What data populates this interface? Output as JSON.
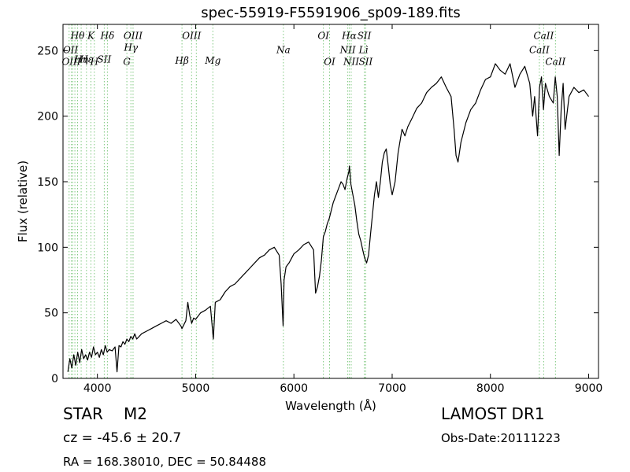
{
  "chart_data": {
    "type": "line",
    "title": "spec-55919-F5591906_sp09-189.fits",
    "xlabel": "Wavelength (Å)",
    "ylabel": "Flux (relative)",
    "xlim": [
      3650,
      9100
    ],
    "ylim": [
      0,
      270
    ],
    "xticks": [
      4000,
      5000,
      6000,
      7000,
      8000,
      9000
    ],
    "yticks": [
      0,
      50,
      100,
      150,
      200,
      250
    ],
    "grid": false,
    "series": [
      {
        "color": "#000000",
        "x": [
          3700,
          3720,
          3740,
          3760,
          3780,
          3800,
          3820,
          3840,
          3860,
          3880,
          3900,
          3920,
          3940,
          3960,
          3980,
          4000,
          4020,
          4040,
          4060,
          4080,
          4100,
          4120,
          4150,
          4180,
          4200,
          4220,
          4240,
          4260,
          4280,
          4300,
          4320,
          4340,
          4360,
          4380,
          4400,
          4450,
          4500,
          4550,
          4600,
          4650,
          4700,
          4750,
          4800,
          4850,
          4860,
          4900,
          4920,
          4940,
          4960,
          4980,
          5000,
          5050,
          5100,
          5150,
          5180,
          5200,
          5250,
          5300,
          5350,
          5400,
          5450,
          5500,
          5550,
          5600,
          5650,
          5700,
          5750,
          5800,
          5850,
          5870,
          5890,
          5900,
          5920,
          5950,
          6000,
          6050,
          6100,
          6150,
          6200,
          6220,
          6240,
          6260,
          6280,
          6300,
          6320,
          6340,
          6360,
          6380,
          6400,
          6420,
          6440,
          6460,
          6480,
          6500,
          6520,
          6540,
          6560,
          6565,
          6580,
          6600,
          6620,
          6640,
          6660,
          6680,
          6700,
          6720,
          6740,
          6760,
          6780,
          6800,
          6820,
          6840,
          6860,
          6880,
          6900,
          6920,
          6940,
          6960,
          6980,
          7000,
          7030,
          7060,
          7100,
          7130,
          7160,
          7200,
          7250,
          7300,
          7350,
          7400,
          7450,
          7500,
          7550,
          7600,
          7630,
          7650,
          7670,
          7700,
          7750,
          7800,
          7850,
          7900,
          7950,
          8000,
          8050,
          8100,
          8150,
          8200,
          8250,
          8300,
          8350,
          8400,
          8430,
          8450,
          8480,
          8500,
          8520,
          8540,
          8560,
          8600,
          8640,
          8660,
          8680,
          8700,
          8720,
          8740,
          8760,
          8800,
          8850,
          8900,
          8950,
          9000
        ],
        "y": [
          5,
          15,
          8,
          18,
          10,
          20,
          12,
          22,
          15,
          18,
          14,
          20,
          16,
          24,
          18,
          20,
          16,
          22,
          18,
          25,
          20,
          22,
          21,
          24,
          5,
          25,
          24,
          28,
          26,
          30,
          28,
          32,
          30,
          34,
          30,
          34,
          36,
          38,
          40,
          42,
          44,
          42,
          45,
          40,
          38,
          44,
          58,
          48,
          42,
          46,
          45,
          50,
          52,
          55,
          30,
          58,
          60,
          66,
          70,
          72,
          76,
          80,
          84,
          88,
          92,
          94,
          98,
          100,
          94,
          72,
          40,
          75,
          85,
          88,
          95,
          98,
          102,
          104,
          98,
          65,
          70,
          78,
          90,
          108,
          112,
          118,
          122,
          128,
          134,
          138,
          142,
          146,
          150,
          148,
          144,
          152,
          158,
          162,
          148,
          140,
          132,
          120,
          110,
          105,
          98,
          92,
          88,
          94,
          110,
          125,
          140,
          150,
          138,
          150,
          165,
          172,
          175,
          162,
          148,
          140,
          150,
          172,
          190,
          185,
          192,
          198,
          206,
          210,
          218,
          222,
          225,
          230,
          222,
          215,
          190,
          170,
          165,
          180,
          195,
          205,
          210,
          220,
          228,
          230,
          240,
          235,
          232,
          240,
          222,
          232,
          238,
          225,
          200,
          215,
          185,
          222,
          230,
          205,
          225,
          215,
          210,
          230,
          215,
          170,
          205,
          225,
          190,
          215,
          222,
          218,
          220,
          215
        ]
      }
    ],
    "lines": {
      "color": "#7fc87f",
      "positions": [
        3712,
        3734,
        3750,
        3771,
        3798,
        3835,
        3889,
        3934,
        3969,
        4070,
        4102,
        4300,
        4341,
        4363,
        4861,
        4959,
        5007,
        5175,
        5893,
        6300,
        6363,
        6548,
        6563,
        6583,
        6716,
        6731,
        8498,
        8542,
        8662
      ],
      "labels": [
        {
          "text": "Hθ",
          "x": 3798,
          "y": 259
        },
        {
          "text": "K",
          "x": 3934,
          "y": 259
        },
        {
          "text": "Hδ",
          "x": 4102,
          "y": 259
        },
        {
          "text": "OIII",
          "x": 4363,
          "y": 259
        },
        {
          "text": "OIII",
          "x": 4959,
          "y": 259
        },
        {
          "text": "OI",
          "x": 6300,
          "y": 259
        },
        {
          "text": "Hα",
          "x": 6563,
          "y": 259
        },
        {
          "text": "SII",
          "x": 6716,
          "y": 259
        },
        {
          "text": "CaII",
          "x": 8542,
          "y": 259
        },
        {
          "text": "OII",
          "x": 3727,
          "y": 248
        },
        {
          "text": "Hγ",
          "x": 4341,
          "y": 250
        },
        {
          "text": "Na",
          "x": 5893,
          "y": 248
        },
        {
          "text": "NII",
          "x": 6548,
          "y": 248
        },
        {
          "text": "Lì",
          "x": 6708,
          "y": 248
        },
        {
          "text": "CaII",
          "x": 8498,
          "y": 248
        },
        {
          "text": "Hη",
          "x": 3835,
          "y": 241
        },
        {
          "text": "Hε",
          "x": 3889,
          "y": 241
        },
        {
          "text": "SII",
          "x": 4070,
          "y": 241
        },
        {
          "text": "OIII",
          "x": 3734,
          "y": 239
        },
        {
          "text": "H",
          "x": 3969,
          "y": 239
        },
        {
          "text": "G",
          "x": 4300,
          "y": 239
        },
        {
          "text": "Hβ",
          "x": 4861,
          "y": 240
        },
        {
          "text": "Mg",
          "x": 5175,
          "y": 240
        },
        {
          "text": "OI",
          "x": 6363,
          "y": 239
        },
        {
          "text": "NII",
          "x": 6583,
          "y": 239
        },
        {
          "text": "SII",
          "x": 6731,
          "y": 239
        },
        {
          "text": "CaII",
          "x": 8662,
          "y": 239
        }
      ]
    }
  },
  "info": {
    "object_class": "STAR",
    "subclass": "M2",
    "redshift": "cz = -45.6 ± 20.7",
    "coords": "RA = 168.38010, DEC = 50.84488",
    "survey": "LAMOST DR1",
    "obs_date": "Obs-Date:20111223"
  }
}
